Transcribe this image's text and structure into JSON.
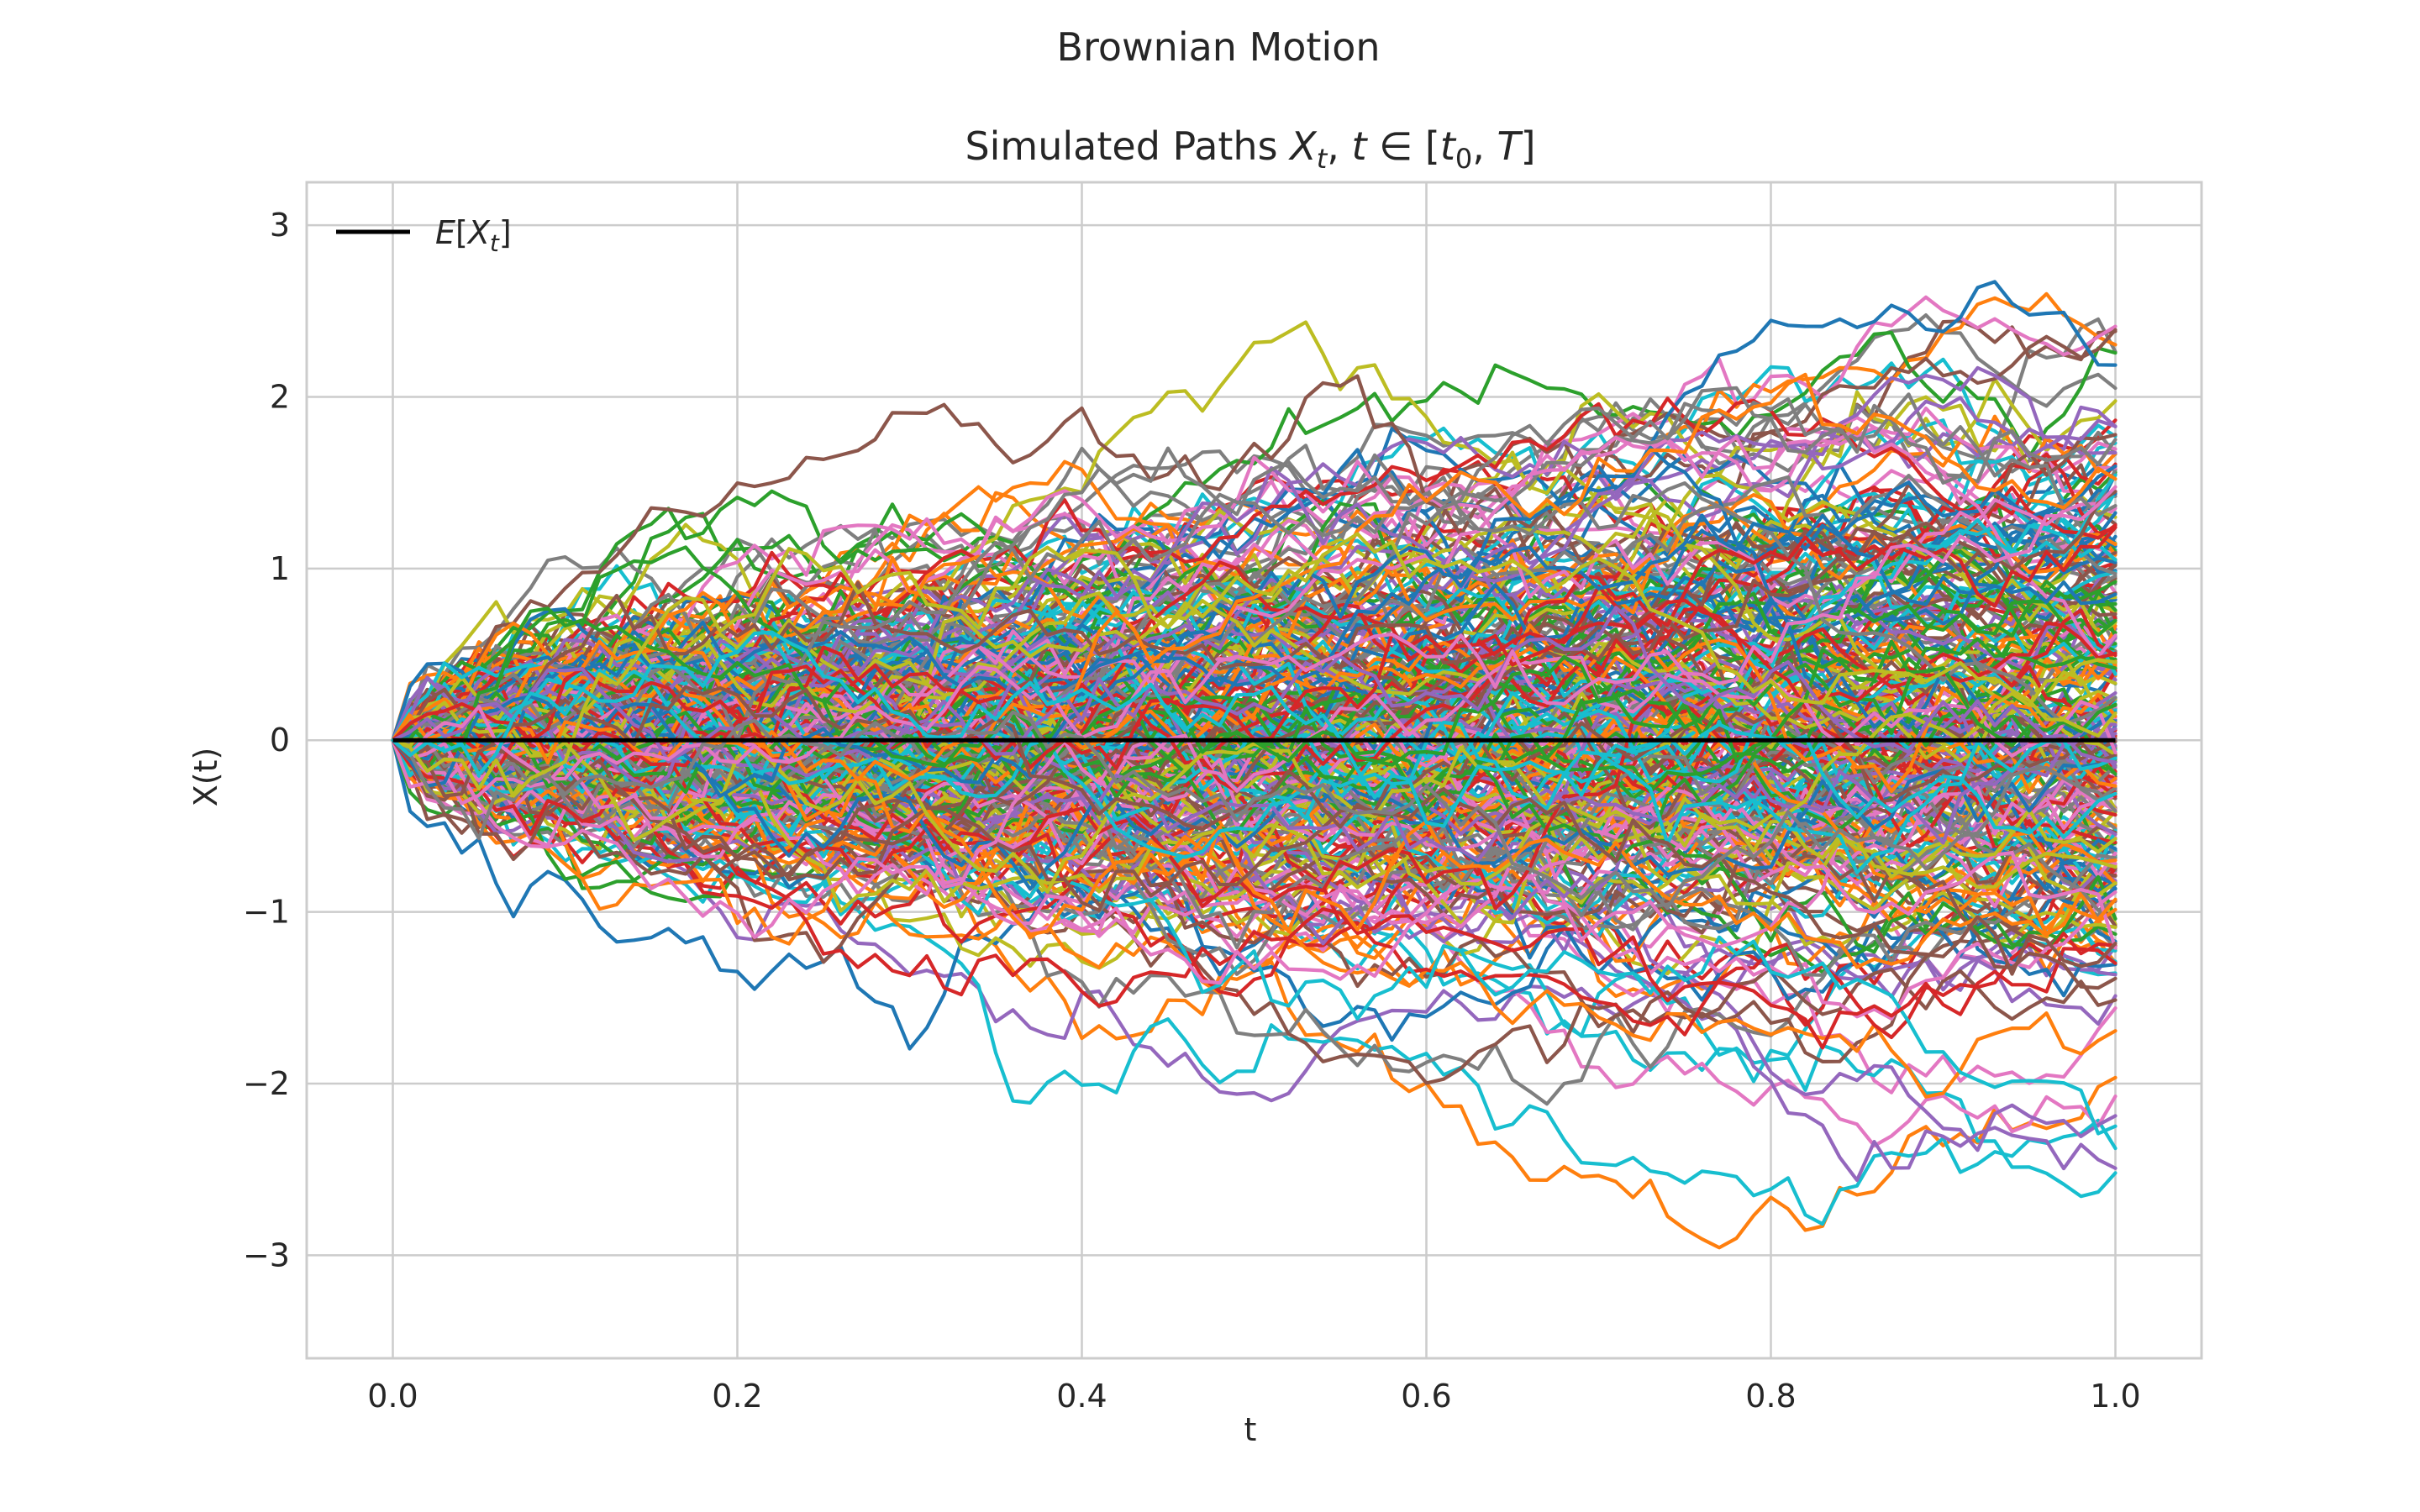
{
  "chart_data": {
    "type": "line",
    "suptitle": "Brownian Motion",
    "title": "Simulated Paths X_t, t ∈ [t_0, T]",
    "title_parts": {
      "prefix": "Simulated Paths ",
      "var": "X",
      "var_sub": "t",
      "sep": ", ",
      "t": "t",
      "in": " ∈ ",
      "lb": "[",
      "t0": "t",
      "t0_sub": "0",
      "comma": ", ",
      "T": "T",
      "rb": "]"
    },
    "xlabel": "t",
    "ylabel": "X(t)",
    "xlim": [
      -0.05,
      1.05
    ],
    "ylim": [
      -3.6,
      3.25
    ],
    "xticks": [
      0.0,
      0.2,
      0.4,
      0.6,
      0.8,
      1.0
    ],
    "xtick_labels": [
      "0.0",
      "0.2",
      "0.4",
      "0.6",
      "0.8",
      "1.0"
    ],
    "yticks": [
      3,
      2,
      1,
      0,
      -1,
      -2,
      -3
    ],
    "ytick_labels": [
      "3",
      "2",
      "1",
      "0",
      "−1",
      "−2",
      "−3"
    ],
    "grid": true,
    "legend": {
      "placement": "top-left",
      "entries": [
        {
          "label_var": "E",
          "label_open": "[",
          "label_x": "X",
          "label_sub": "t",
          "label_close": "]",
          "color": "#000000"
        }
      ]
    },
    "mean_series": {
      "x": [
        0.0,
        1.0
      ],
      "y": [
        0.0,
        0.0
      ],
      "color": "#000000"
    },
    "paths": {
      "count": 300,
      "steps": 100,
      "t0": 0.0,
      "T": 1.0,
      "x0": 0.0,
      "color_cycle": [
        "#1f77b4",
        "#ff7f0e",
        "#2ca02c",
        "#d62728",
        "#9467bd",
        "#8c564b",
        "#e377c2",
        "#7f7f7f",
        "#bcbd22",
        "#17becf"
      ]
    }
  }
}
